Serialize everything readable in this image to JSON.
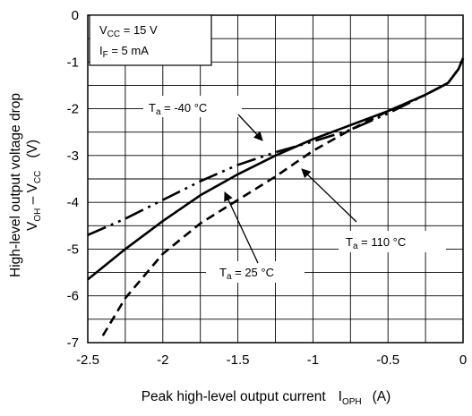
{
  "chart_data": {
    "type": "line",
    "xlabel": "Peak high-level output current",
    "xlabel_symbol": "I",
    "xlabel_symbol_sub": "OPH",
    "xlabel_unit": "(A)",
    "ylabel_line1": "High-level output voltage drop",
    "ylabel_line2_a": "V",
    "ylabel_line2_a_sub": "OH",
    "ylabel_line2_mid": " – V",
    "ylabel_line2_b_sub": "CC",
    "ylabel_unit": "(V)",
    "xlim": [
      -2.5,
      0
    ],
    "ylim": [
      -7,
      0
    ],
    "x_ticks": [
      "-2.5",
      "-2",
      "-1.5",
      "-1",
      "-0.5",
      "0"
    ],
    "y_ticks": [
      "0",
      "-1",
      "-2",
      "-3",
      "-4",
      "-5",
      "-6",
      "-7"
    ],
    "grid": true,
    "conditions": [
      {
        "main": "V",
        "sub": "CC",
        "rest": " = 15 V"
      },
      {
        "main": "I",
        "sub": "F",
        "rest": " = 5 mA"
      }
    ],
    "series": [
      {
        "name_main": "T",
        "name_sub": "a",
        "name_rest": " = -40 °C",
        "style": "dash-dot-dot",
        "x": [
          -2.5,
          -2.25,
          -2.0,
          -1.75,
          -1.5,
          -1.25,
          -1.0,
          -0.75,
          -0.5,
          -0.25,
          -0.1,
          -0.03,
          0.0
        ],
        "y": [
          -4.7,
          -4.35,
          -3.95,
          -3.55,
          -3.2,
          -2.93,
          -2.7,
          -2.45,
          -2.1,
          -1.7,
          -1.45,
          -1.15,
          -0.92
        ]
      },
      {
        "name_main": "T",
        "name_sub": "a",
        "name_rest": " = 25 °C",
        "style": "solid",
        "x": [
          -2.5,
          -2.25,
          -2.0,
          -1.75,
          -1.5,
          -1.25,
          -1.0,
          -0.75,
          -0.5,
          -0.25,
          -0.1,
          -0.03,
          0.0
        ],
        "y": [
          -5.65,
          -5.0,
          -4.4,
          -3.85,
          -3.4,
          -3.0,
          -2.65,
          -2.35,
          -2.05,
          -1.7,
          -1.45,
          -1.15,
          -0.92
        ]
      },
      {
        "name_main": "T",
        "name_sub": "a",
        "name_rest": " = 110 °C",
        "style": "dashed",
        "x": [
          -2.4,
          -2.25,
          -2.0,
          -1.75,
          -1.5,
          -1.25,
          -1.0,
          -0.75,
          -0.5,
          -0.25,
          -0.1,
          -0.03,
          0.0
        ],
        "y": [
          -6.85,
          -6.05,
          -5.1,
          -4.45,
          -3.95,
          -3.45,
          -2.9,
          -2.45,
          -2.05,
          -1.7,
          -1.45,
          -1.15,
          -0.92
        ]
      }
    ]
  }
}
